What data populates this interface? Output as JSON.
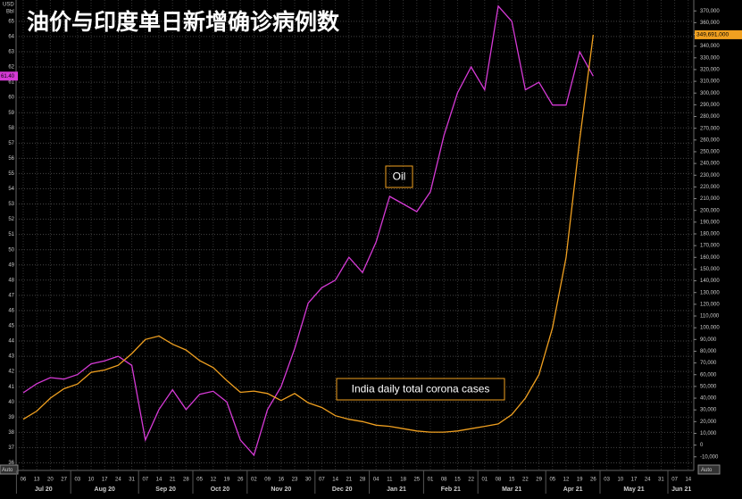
{
  "chart_data": {
    "type": "line",
    "title": "油价与印度单日新增确诊病例数",
    "ylabel": "USD",
    "ylabel_unit": "Bbl",
    "axis_buttons": [
      "Auto",
      "Auto"
    ],
    "annotations": [
      "Oil",
      "India daily total corona cases"
    ],
    "categories": [
      "06",
      "13",
      "20",
      "27",
      "03",
      "10",
      "17",
      "24",
      "31",
      "07",
      "14",
      "21",
      "28",
      "05",
      "12",
      "19",
      "26",
      "02",
      "09",
      "16",
      "23",
      "30",
      "07",
      "14",
      "21",
      "28",
      "04",
      "11",
      "18",
      "25",
      "01",
      "08",
      "15",
      "22",
      "01",
      "08",
      "15",
      "22",
      "29",
      "05",
      "12",
      "19",
      "26",
      "03",
      "10",
      "17",
      "24",
      "31",
      "07",
      "14"
    ],
    "months": [
      "Jul 20",
      "Aug 20",
      "Sep 20",
      "Oct 20",
      "Nov 20",
      "Dec 20",
      "Jan 21",
      "Feb 21",
      "Mar 21",
      "Apr 21",
      "May 21",
      "Jun 21"
    ],
    "series": [
      {
        "name": "Oil",
        "color": "#d63ad6",
        "current_label": "61.40",
        "values": [
          40.6,
          41.2,
          41.6,
          41.5,
          41.8,
          42.5,
          42.7,
          43.0,
          42.4,
          37.5,
          39.5,
          40.8,
          39.5,
          40.5,
          40.7,
          40.0,
          37.5,
          36.5,
          39.5,
          41.0,
          43.5,
          46.5,
          47.5,
          48.0,
          49.5,
          48.5,
          50.5,
          53.5,
          53.0,
          52.5,
          53.8,
          57.5,
          60.3,
          62.0,
          60.5,
          66.0,
          65.0,
          60.5,
          61.0,
          59.5,
          59.5,
          63.0,
          61.4,
          null,
          null,
          null,
          null,
          null,
          null,
          null
        ]
      },
      {
        "name": "India daily total corona cases",
        "color": "#f0a020",
        "axis": "y2",
        "current_label": "349,691.000",
        "values": [
          22000,
          29000,
          40000,
          48000,
          52000,
          62000,
          64000,
          68000,
          78000,
          90000,
          93000,
          86000,
          81000,
          72000,
          66000,
          55000,
          45000,
          46000,
          44000,
          38000,
          44000,
          36000,
          32000,
          25000,
          22000,
          20000,
          17000,
          16000,
          14000,
          12000,
          11000,
          11000,
          12000,
          14000,
          16000,
          18000,
          26000,
          40000,
          60000,
          100000,
          160000,
          260000,
          349691,
          null,
          null,
          null,
          null,
          null,
          null,
          null
        ]
      }
    ],
    "ylim": [
      35.5,
      66.4
    ],
    "yticks": [
      36,
      37,
      38,
      39,
      40,
      41,
      42,
      43,
      44,
      45,
      46,
      47,
      48,
      49,
      50,
      51,
      52,
      53,
      54,
      55,
      56,
      57,
      58,
      59,
      60,
      61,
      62,
      63,
      64,
      65
    ],
    "y2lim": [
      -21600,
      379300
    ],
    "y2ticks": [
      {
        "value": -10000,
        "label": "-10,000"
      },
      0,
      {
        "value": 10000,
        "label": "10,000"
      },
      {
        "value": 20000,
        "label": "20,000"
      },
      {
        "value": 30000,
        "label": "30,000"
      },
      {
        "value": 40000,
        "label": "40,000"
      },
      {
        "value": 50000,
        "label": "50,000"
      },
      {
        "value": 60000,
        "label": "60,000"
      },
      {
        "value": 70000,
        "label": "70,000"
      },
      {
        "value": 80000,
        "label": "80,000"
      },
      {
        "value": 90000,
        "label": "90,000"
      },
      {
        "value": 100000,
        "label": "100,000"
      },
      {
        "value": 110000,
        "label": "110,000"
      },
      {
        "value": 120000,
        "label": "120,000"
      },
      {
        "value": 130000,
        "label": "130,000"
      },
      {
        "value": 140000,
        "label": "140,000"
      },
      {
        "value": 150000,
        "label": "150,000"
      },
      {
        "value": 160000,
        "label": "160,000"
      },
      {
        "value": 170000,
        "label": "170,000"
      },
      {
        "value": 180000,
        "label": "180,000"
      },
      {
        "value": 190000,
        "label": "190,000"
      },
      {
        "value": 200000,
        "label": "200,000"
      },
      {
        "value": 210000,
        "label": "210,000"
      },
      {
        "value": 220000,
        "label": "220,000"
      },
      {
        "value": 230000,
        "label": "230,000"
      },
      {
        "value": 240000,
        "label": "240,000"
      },
      {
        "value": 250000,
        "label": "250,000"
      },
      {
        "value": 260000,
        "label": "260,000"
      },
      {
        "value": 270000,
        "label": "270,000"
      },
      {
        "value": 280000,
        "label": "280,000"
      },
      {
        "value": 290000,
        "label": "290,000"
      },
      {
        "value": 300000,
        "label": "300,000"
      },
      {
        "value": 310000,
        "label": "310,000"
      },
      {
        "value": 320000,
        "label": "320,000"
      },
      {
        "value": 330000,
        "label": "330,000"
      },
      {
        "value": 340000,
        "label": "340,000"
      },
      {
        "value": 350000,
        "label": "350,000"
      },
      {
        "value": 360000,
        "label": "360,000"
      },
      {
        "value": 370000,
        "label": "370,000"
      }
    ],
    "grid": true
  }
}
